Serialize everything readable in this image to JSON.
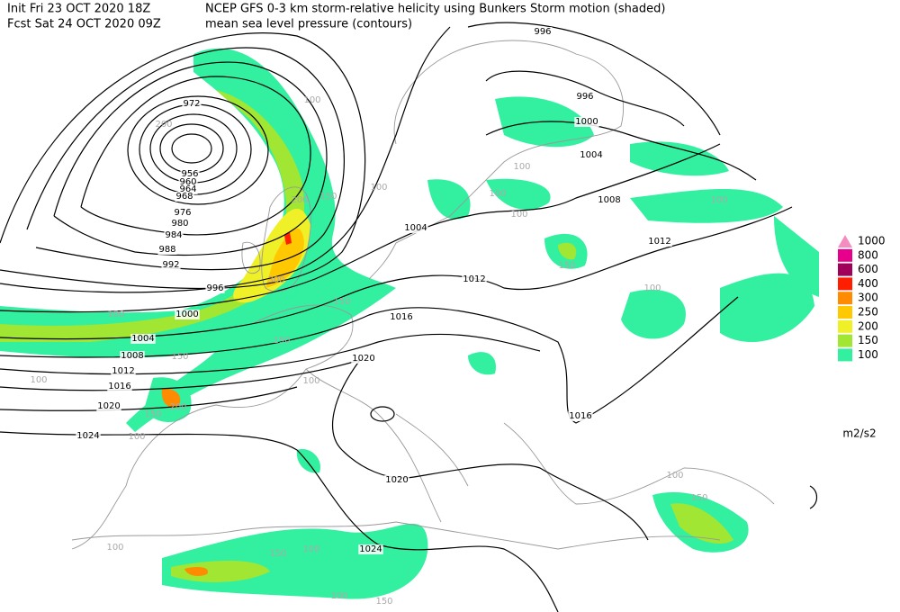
{
  "header": {
    "init": "Init  Fri 23 OCT 2020 18Z",
    "fcst": "Fcst Sat 24 OCT 2020 09Z",
    "title": "NCEP GFS 0-3 km storm-relative helicity using Bunkers Storm motion (shaded)",
    "subtitle": "mean sea level pressure (contours)"
  },
  "legend": {
    "unit": "m2/s2",
    "levels": [
      {
        "label": "1000",
        "color": "#f58cc0"
      },
      {
        "label": "800",
        "color": "#e6008c"
      },
      {
        "label": "600",
        "color": "#a0005a"
      },
      {
        "label": "400",
        "color": "#ff1e00"
      },
      {
        "label": "300",
        "color": "#ff8c00"
      },
      {
        "label": "250",
        "color": "#ffc800"
      },
      {
        "label": "200",
        "color": "#f0f028"
      },
      {
        "label": "150",
        "color": "#a0e632"
      },
      {
        "label": "100",
        "color": "#32f0a0"
      }
    ]
  },
  "contour_labels": [
    "996",
    "996",
    "1000",
    "1004",
    "1008",
    "1012",
    "1004",
    "1012",
    "1016",
    "1016",
    "1020",
    "1020",
    "1024",
    "972",
    "956",
    "960",
    "964",
    "968",
    "976",
    "980",
    "984",
    "988",
    "992",
    "996",
    "1000",
    "1004",
    "1008",
    "1012",
    "1016",
    "1020",
    "1024"
  ],
  "shading_labels": [
    "100",
    "200",
    "100",
    "200",
    "150",
    "300",
    "150",
    "100",
    "100",
    "100",
    "100",
    "150",
    "100",
    "100",
    "150",
    "150",
    "200",
    "150",
    "100",
    "100",
    "100",
    "150",
    "100",
    "100",
    "150",
    "100",
    "150",
    "100"
  ]
}
